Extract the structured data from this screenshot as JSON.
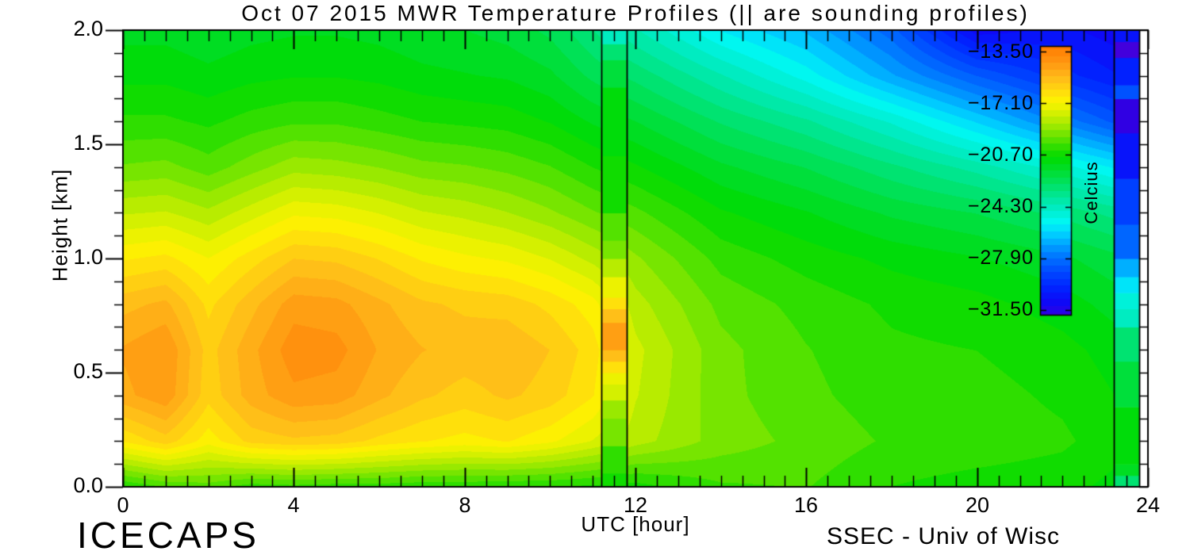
{
  "chart_data": {
    "type": "heatmap",
    "title": "Oct 07 2015 MWR Temperature Profiles (|| are sounding profiles)",
    "xlabel": "UTC [hour]",
    "ylabel": "Height [km]",
    "units": "Celcius",
    "x_range_hours": [
      0,
      24
    ],
    "y_range_km": [
      0,
      2
    ],
    "x_tick_labels": [
      "0",
      "4",
      "8",
      "12",
      "16",
      "20",
      "24"
    ],
    "y_tick_labels": [
      "0.0",
      "0.5",
      "1.0",
      "1.5",
      "2.0"
    ],
    "grid_on": false,
    "data_end_hour": 23.8,
    "contour_step_c": 0.47,
    "colorbar": {
      "label": "Celcius",
      "tick_labels": [
        "−13.50",
        "−17.10",
        "−20.70",
        "−24.30",
        "−27.90",
        "−31.50"
      ],
      "tick_temps_c": [
        -13.5,
        -17.1,
        -20.7,
        -24.3,
        -27.9,
        -31.5
      ],
      "temp_at_top": -13.11,
      "temp_at_bottom": -31.89
    },
    "color_scale": [
      [
        -13.1,
        "#FF7A00"
      ],
      [
        -14.2,
        "#FF9510"
      ],
      [
        -15.3,
        "#FFB91A"
      ],
      [
        -16.2,
        "#FFD90F"
      ],
      [
        -17.0,
        "#FDF400"
      ],
      [
        -17.8,
        "#D5F000"
      ],
      [
        -18.6,
        "#A4EA00"
      ],
      [
        -19.5,
        "#62E300"
      ],
      [
        -20.3,
        "#24DD00"
      ],
      [
        -20.9,
        "#00DB00"
      ],
      [
        -21.8,
        "#00DE2E"
      ],
      [
        -22.8,
        "#00E266"
      ],
      [
        -23.8,
        "#00E8A2"
      ],
      [
        -24.6,
        "#00EECC"
      ],
      [
        -25.4,
        "#00F8F4"
      ],
      [
        -26.2,
        "#00CFFF"
      ],
      [
        -27.0,
        "#009FFF"
      ],
      [
        -27.9,
        "#0070FF"
      ],
      [
        -28.9,
        "#0047FF"
      ],
      [
        -29.9,
        "#0024FF"
      ],
      [
        -30.9,
        "#0D0AF7"
      ],
      [
        -31.9,
        "#3000E3"
      ],
      [
        -33.0,
        "#5A00D2"
      ]
    ],
    "grid": {
      "x_hours": [
        0,
        1,
        2,
        3,
        4,
        5,
        6,
        7,
        8,
        9,
        10,
        11,
        12,
        14,
        16,
        18,
        20,
        22,
        24
      ],
      "y_km": [
        0,
        0.2,
        0.4,
        0.6,
        0.8,
        1.0,
        1.2,
        1.4,
        1.6,
        1.8,
        2.0
      ],
      "temperature_c": [
        [
          -20.4,
          -19.9,
          -19.7,
          -20.2,
          -20.1,
          -20.2,
          -20.2,
          -20.3,
          -20.3,
          -20.4,
          -20.4,
          -20.5,
          -20.6,
          -20.0,
          -19.9,
          -20.4,
          -20.6,
          -20.7,
          -21.2
        ],
        [
          -16.6,
          -15.9,
          -16.9,
          -16.0,
          -15.8,
          -15.9,
          -16.3,
          -16.6,
          -16.8,
          -16.6,
          -17.0,
          -17.6,
          -18.3,
          -19.2,
          -19.6,
          -20.0,
          -20.1,
          -20.3,
          -20.9
        ],
        [
          -14.9,
          -14.4,
          -16.0,
          -15.0,
          -14.4,
          -14.5,
          -15.1,
          -15.6,
          -15.9,
          -15.6,
          -15.9,
          -16.6,
          -18.0,
          -19.3,
          -19.8,
          -20.2,
          -20.2,
          -20.5,
          -21.1
        ],
        [
          -14.7,
          -14.3,
          -15.9,
          -14.9,
          -14.0,
          -14.1,
          -14.8,
          -15.2,
          -15.4,
          -15.3,
          -15.7,
          -16.4,
          -17.9,
          -19.3,
          -19.9,
          -20.3,
          -20.4,
          -20.7,
          -21.3
        ],
        [
          -15.4,
          -15.1,
          -16.3,
          -15.4,
          -14.5,
          -14.6,
          -15.1,
          -15.6,
          -15.8,
          -15.9,
          -16.3,
          -16.9,
          -18.3,
          -19.6,
          -20.1,
          -20.5,
          -20.7,
          -21.1,
          -21.8
        ],
        [
          -16.7,
          -16.5,
          -17.1,
          -16.4,
          -15.7,
          -15.8,
          -16.2,
          -16.7,
          -17.0,
          -17.2,
          -17.6,
          -18.2,
          -18.9,
          -20.1,
          -20.6,
          -21.0,
          -21.3,
          -21.7,
          -22.4
        ],
        [
          -18.1,
          -18.0,
          -18.4,
          -17.8,
          -17.2,
          -17.3,
          -17.6,
          -18.0,
          -18.2,
          -18.5,
          -18.9,
          -19.4,
          -19.8,
          -20.8,
          -21.3,
          -21.9,
          -22.3,
          -22.9,
          -23.7
        ],
        [
          -19.4,
          -19.3,
          -19.7,
          -19.2,
          -18.7,
          -18.8,
          -19.0,
          -19.3,
          -19.4,
          -19.6,
          -19.9,
          -20.4,
          -20.8,
          -21.7,
          -22.3,
          -23.1,
          -23.9,
          -24.9,
          -26.1
        ],
        [
          -20.3,
          -20.3,
          -20.5,
          -20.2,
          -20.0,
          -20.0,
          -20.2,
          -20.4,
          -20.5,
          -20.6,
          -20.9,
          -21.4,
          -21.8,
          -22.8,
          -23.6,
          -24.7,
          -26.1,
          -27.6,
          -29.1
        ],
        [
          -21.0,
          -21.0,
          -21.2,
          -21.0,
          -20.9,
          -20.9,
          -21.0,
          -21.2,
          -21.3,
          -21.4,
          -21.7,
          -22.4,
          -22.9,
          -24.1,
          -25.3,
          -26.9,
          -28.4,
          -29.6,
          -30.6
        ],
        [
          -21.5,
          -21.5,
          -21.7,
          -21.5,
          -21.4,
          -21.4,
          -21.5,
          -21.7,
          -21.8,
          -22.0,
          -22.4,
          -23.2,
          -24.1,
          -25.6,
          -26.6,
          -28.2,
          -31.0,
          -30.6,
          -31.3
        ]
      ]
    },
    "soundings": [
      {
        "start_hour": 11.2,
        "end_hour": 11.8,
        "bands": [
          [
            0.0,
            0.06,
            -20.8
          ],
          [
            0.06,
            0.18,
            -20.2
          ],
          [
            0.18,
            0.3,
            -19.4
          ],
          [
            0.3,
            0.38,
            -18.7
          ],
          [
            0.38,
            0.45,
            -18.0
          ],
          [
            0.45,
            0.5,
            -17.2
          ],
          [
            0.5,
            0.55,
            -16.3
          ],
          [
            0.55,
            0.6,
            -15.4
          ],
          [
            0.6,
            0.72,
            -14.7
          ],
          [
            0.72,
            0.78,
            -15.4
          ],
          [
            0.78,
            0.83,
            -16.2
          ],
          [
            0.83,
            0.92,
            -17.2
          ],
          [
            0.92,
            1.0,
            -18.2
          ],
          [
            1.0,
            1.08,
            -19.0
          ],
          [
            1.08,
            1.2,
            -19.7
          ],
          [
            1.2,
            1.45,
            -20.4
          ],
          [
            1.45,
            1.75,
            -21.0
          ],
          [
            1.75,
            1.87,
            -21.9
          ],
          [
            1.87,
            1.94,
            -23.0
          ],
          [
            1.94,
            2.0,
            -24.2
          ]
        ]
      },
      {
        "start_hour": 23.2,
        "end_hour": 23.8,
        "bands": [
          [
            0.0,
            0.05,
            -23.2
          ],
          [
            0.05,
            0.1,
            -21.8
          ],
          [
            0.1,
            0.35,
            -20.9
          ],
          [
            0.35,
            0.55,
            -22.2
          ],
          [
            0.55,
            0.7,
            -23.2
          ],
          [
            0.7,
            0.78,
            -24.2
          ],
          [
            0.78,
            0.85,
            -24.9
          ],
          [
            0.85,
            0.92,
            -25.6
          ],
          [
            0.92,
            1.0,
            -26.8
          ],
          [
            1.0,
            1.15,
            -28.0
          ],
          [
            1.15,
            1.35,
            -29.2
          ],
          [
            1.35,
            1.55,
            -30.3
          ],
          [
            1.55,
            1.7,
            -31.8
          ],
          [
            1.7,
            1.76,
            -28.8
          ],
          [
            1.76,
            1.88,
            -29.8
          ],
          [
            1.88,
            1.95,
            -32.2
          ],
          [
            1.95,
            2.0,
            -30.6
          ]
        ]
      }
    ]
  },
  "annotations": {
    "bottom_left": "ICECAPS",
    "bottom_right": "SSEC - Univ of Wisc"
  }
}
